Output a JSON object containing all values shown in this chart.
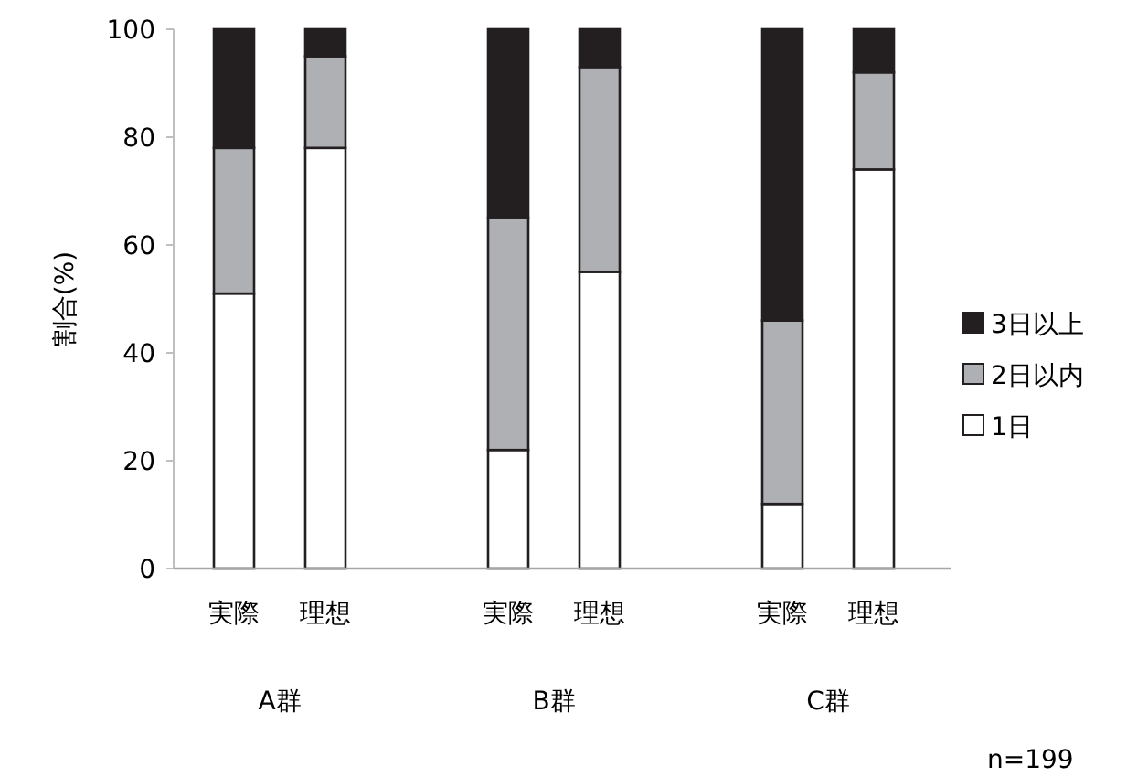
{
  "chart_data": {
    "type": "bar",
    "stacked": true,
    "ylabel": "割合(%)",
    "categories": [
      "実際",
      "理想",
      "実際",
      "理想",
      "実際",
      "理想"
    ],
    "series": [
      {
        "name": "1日",
        "color": "#ffffff",
        "values": [
          51,
          78,
          22,
          55,
          12,
          74
        ]
      },
      {
        "name": "2日以内",
        "color": "#aeb0b3",
        "values": [
          27,
          17,
          43,
          38,
          34,
          18
        ]
      },
      {
        "name": "3日以上",
        "color": "#231f20",
        "values": [
          22,
          5,
          35,
          7,
          54,
          8
        ]
      }
    ],
    "ylim": [
      0,
      100
    ],
    "yticks": [
      0,
      20,
      40,
      60,
      80,
      100
    ],
    "grid": false,
    "legend": "right",
    "annotations": [
      "A群",
      "B群",
      "C群",
      "n=199"
    ]
  }
}
